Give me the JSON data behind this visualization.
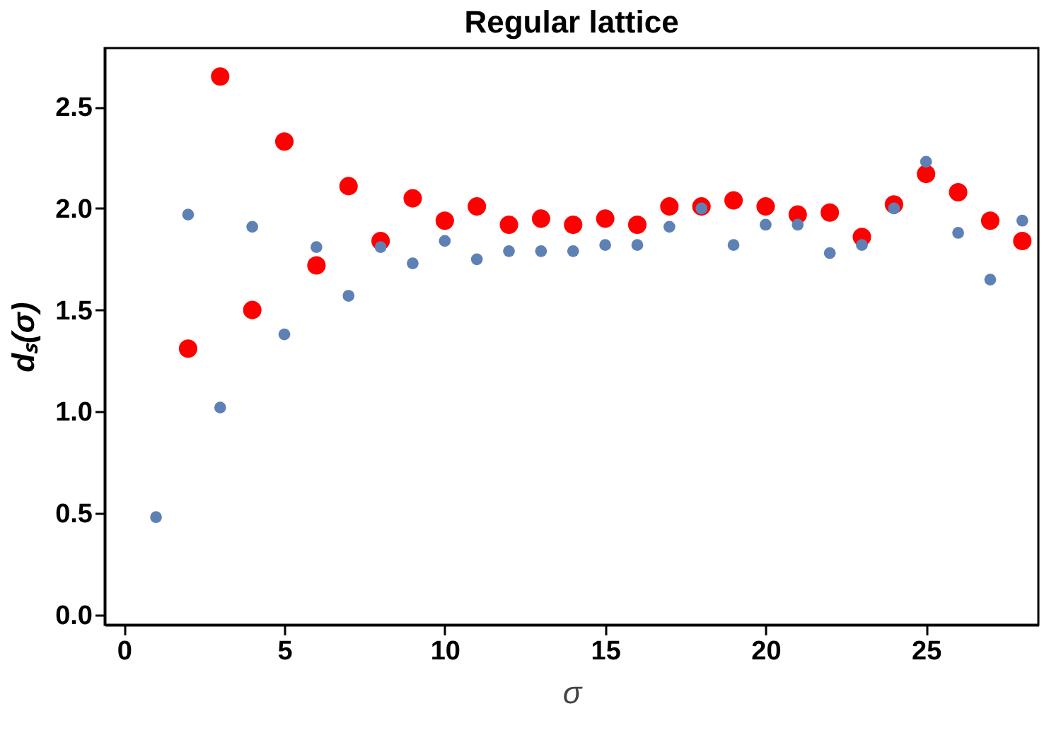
{
  "chart_data": {
    "type": "scatter",
    "title": "Regular lattice",
    "xlabel": "σ",
    "ylabel": "dₛ(σ)",
    "xlim": [
      -0.6,
      28.5
    ],
    "xticks": [
      0,
      5,
      10,
      15,
      20,
      25
    ],
    "ylim": [
      -0.05,
      2.79
    ],
    "yticks": [
      {
        "value": 0,
        "label": "0.0"
      },
      0.5,
      {
        "value": 1,
        "label": "1.0"
      },
      1.5,
      {
        "value": 2,
        "label": "2.0"
      },
      2.5
    ],
    "grid": false,
    "marker": "circle",
    "series": [
      {
        "color": "#5e81b5",
        "x": [
          1,
          2,
          3,
          4,
          5,
          6,
          7,
          8,
          9,
          10,
          11,
          12,
          13,
          14,
          15,
          16,
          17,
          18,
          19,
          20,
          21,
          22,
          23,
          24,
          25,
          26,
          27,
          28
        ],
        "values": [
          0.48,
          1.97,
          1.02,
          1.91,
          1.38,
          1.81,
          1.57,
          1.81,
          1.73,
          1.84,
          1.75,
          1.79,
          1.79,
          1.79,
          1.82,
          1.82,
          1.91,
          2.0,
          1.82,
          1.92,
          1.92,
          1.78,
          1.82,
          2.0,
          2.23,
          1.88,
          1.65,
          1.94
        ]
      },
      {
        "color": "#ff0000",
        "x": [
          2,
          3,
          4,
          5,
          6,
          7,
          8,
          9,
          10,
          11,
          12,
          13,
          14,
          15,
          16,
          17,
          18,
          19,
          20,
          21,
          22,
          23,
          24,
          25,
          26,
          27,
          28
        ],
        "values": [
          1.31,
          2.65,
          1.5,
          2.33,
          1.72,
          2.11,
          1.84,
          2.05,
          1.94,
          2.01,
          1.92,
          1.95,
          1.92,
          1.95,
          1.92,
          2.01,
          2.01,
          2.04,
          2.01,
          1.97,
          1.98,
          1.86,
          2.02,
          2.17,
          2.08,
          1.94,
          1.84
        ]
      }
    ]
  }
}
